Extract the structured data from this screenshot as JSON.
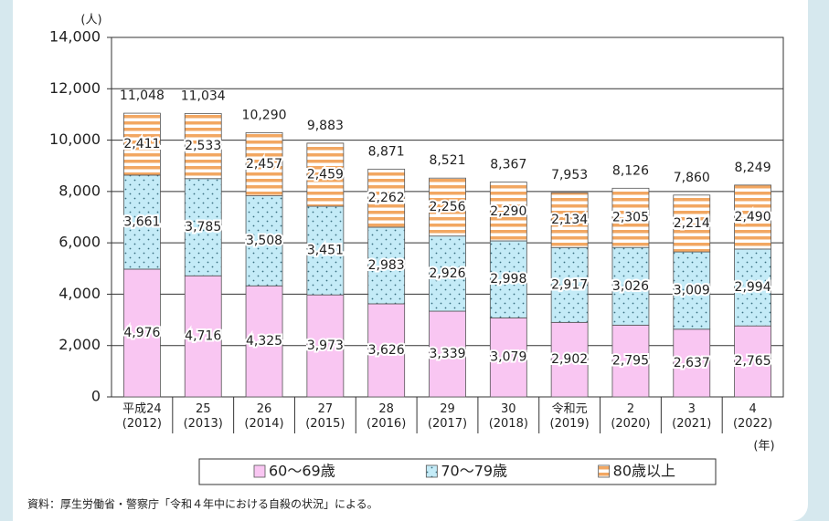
{
  "chart_data": {
    "type": "stacked_bar",
    "y_unit": "(人)",
    "x_unit": "(年)",
    "source": "資料：厚生労働省・警察庁「令和４年中における自殺の状況」による。",
    "categories": [
      "平成24\n(2012)",
      "25\n(2013)",
      "26\n(2014)",
      "27\n(2015)",
      "28\n(2016)",
      "29\n(2017)",
      "30\n(2018)",
      "令和元\n(2019)",
      "2\n(2020)",
      "3\n(2021)",
      "4\n(2022)"
    ],
    "series": [
      {
        "name": "60～69歳",
        "color": "#f9c6f2",
        "values": [
          4976,
          4716,
          4325,
          3973,
          3626,
          3339,
          3079,
          2902,
          2795,
          2637,
          2765
        ],
        "value_labels": [
          "4,976",
          "4,716",
          "4,325",
          "3,973",
          "3,626",
          "3,339",
          "3,079",
          "2,902",
          "2,795",
          "2,637",
          "2,765"
        ]
      },
      {
        "name": "70～79歳",
        "color": "#c4ebf7",
        "values": [
          3661,
          3785,
          3508,
          3451,
          2983,
          2926,
          2998,
          2917,
          3026,
          3009,
          2994
        ],
        "value_labels": [
          "3,661",
          "3,785",
          "3,508",
          "3,451",
          "2,983",
          "2,926",
          "2,998",
          "2,917",
          "3,026",
          "3,009",
          "2,994"
        ]
      },
      {
        "name": "80歳以上",
        "color": "#f2a762",
        "values": [
          2411,
          2533,
          2457,
          2459,
          2262,
          2256,
          2290,
          2134,
          2305,
          2214,
          2490
        ],
        "value_labels": [
          "2,411",
          "2,533",
          "2,457",
          "2,459",
          "2,262",
          "2,256",
          "2,290",
          "2,134",
          "2,305",
          "2,214",
          "2,490"
        ]
      }
    ],
    "totals": {
      "values": [
        11048,
        11034,
        10290,
        9883,
        8871,
        8521,
        8367,
        7953,
        8126,
        7860,
        8249
      ],
      "value_labels": [
        "11,048",
        "11,034",
        "10,290",
        "9,883",
        "8,871",
        "8,521",
        "8,367",
        "7,953",
        "8,126",
        "7,860",
        "8,249"
      ]
    },
    "ylim": [
      0,
      14000
    ],
    "yticks": [
      0,
      {
        "value": 2000,
        "label": "2,000"
      },
      {
        "value": 4000,
        "label": "4,000"
      },
      {
        "value": 6000,
        "label": "6,000"
      },
      {
        "value": 8000,
        "label": "8,000"
      },
      {
        "value": 10000,
        "label": "10,000"
      },
      {
        "value": 12000,
        "label": "12,000"
      },
      {
        "value": 14000,
        "label": "14,000"
      }
    ],
    "grid": true,
    "legend": "bottom"
  }
}
